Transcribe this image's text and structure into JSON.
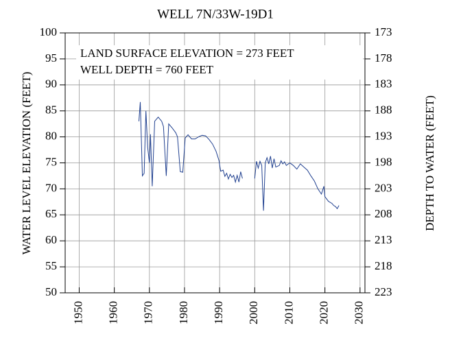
{
  "chart_data": {
    "type": "line",
    "title": "WELL 7N/33W-19D1",
    "ylabel": "WATER LEVEL ELEVATION (FEET)",
    "y2label": "DEPTH TO WATER (FEET)",
    "annotations": [
      "LAND SURFACE ELEVATION = 273 FEET",
      "WELL DEPTH = 760 FEET"
    ],
    "xlim": [
      1946,
      2031.4
    ],
    "xticks": [
      1950,
      1960,
      1970,
      1980,
      1990,
      2000,
      2010,
      2020,
      2030
    ],
    "ylim": [
      50,
      100
    ],
    "yticks": [
      50,
      55,
      60,
      65,
      70,
      75,
      80,
      85,
      90,
      95,
      100
    ],
    "y2lim": [
      223,
      173
    ],
    "y2ticks": [
      223,
      218,
      213,
      208,
      203,
      198,
      193,
      188,
      183,
      178,
      173
    ],
    "grid": true,
    "series": [
      {
        "color": "#1f3f8f",
        "x": [
          1967.0,
          1967.4,
          1968.0,
          1968.5,
          1969.0,
          1969.5,
          1970.0,
          1970.3,
          1970.8,
          1971.5,
          1972.5,
          1973.5,
          1974.0,
          1974.8,
          1975.5,
          1976.5,
          1977.5,
          1978.0,
          1978.8,
          1979.5,
          1980.2,
          1981.0,
          1982.0,
          1983.0,
          1984.0,
          1985.0,
          1986.0,
          1987.0,
          1988.0,
          1989.0,
          1989.8,
          1990.3,
          1991.0,
          1991.5,
          1992.0,
          1992.5,
          1993.0,
          1993.5,
          1994.0,
          1994.5,
          1995.0,
          1995.5,
          1996.0,
          1996.5,
          null,
          2000.0,
          2000.5,
          2001.0,
          2001.5,
          2002.0,
          2002.5,
          2003.0,
          2003.5,
          2004.0,
          2004.5,
          2005.0,
          2005.5,
          2006.0,
          2007.0,
          2007.5,
          2008.0,
          2008.5,
          2009.0,
          2010.0,
          2011.0,
          2012.0,
          2013.0,
          2014.0,
          2015.0,
          2016.0,
          2017.0,
          2018.0,
          2019.0,
          2019.7,
          2020.0,
          2021.0,
          2022.0,
          2022.5,
          2023.0,
          2023.5,
          2024.0
        ],
        "values": [
          83,
          86.7,
          72.5,
          73,
          85,
          78,
          75,
          80.5,
          70.5,
          83,
          83.8,
          83,
          82,
          72.5,
          82.5,
          81.7,
          80.8,
          80,
          73.3,
          73.2,
          79.8,
          80.4,
          79.6,
          79.6,
          80,
          80.3,
          80.2,
          79.5,
          78.6,
          77.2,
          75.5,
          73.4,
          73.6,
          72.4,
          73,
          71.9,
          72.8,
          72.2,
          72.6,
          71.3,
          72.6,
          71.3,
          73.3,
          72,
          null,
          72,
          75.3,
          74,
          75.3,
          74.5,
          65.8,
          75,
          76,
          74.8,
          76.3,
          74,
          75.8,
          74.2,
          74.5,
          75.4,
          74.8,
          75.2,
          74.5,
          75,
          74.5,
          73.8,
          74.8,
          74.2,
          73.6,
          72.5,
          71.5,
          70,
          69,
          70.5,
          68.5,
          67.6,
          67.2,
          66.8,
          66.6,
          66.2,
          66.8
        ]
      }
    ]
  }
}
